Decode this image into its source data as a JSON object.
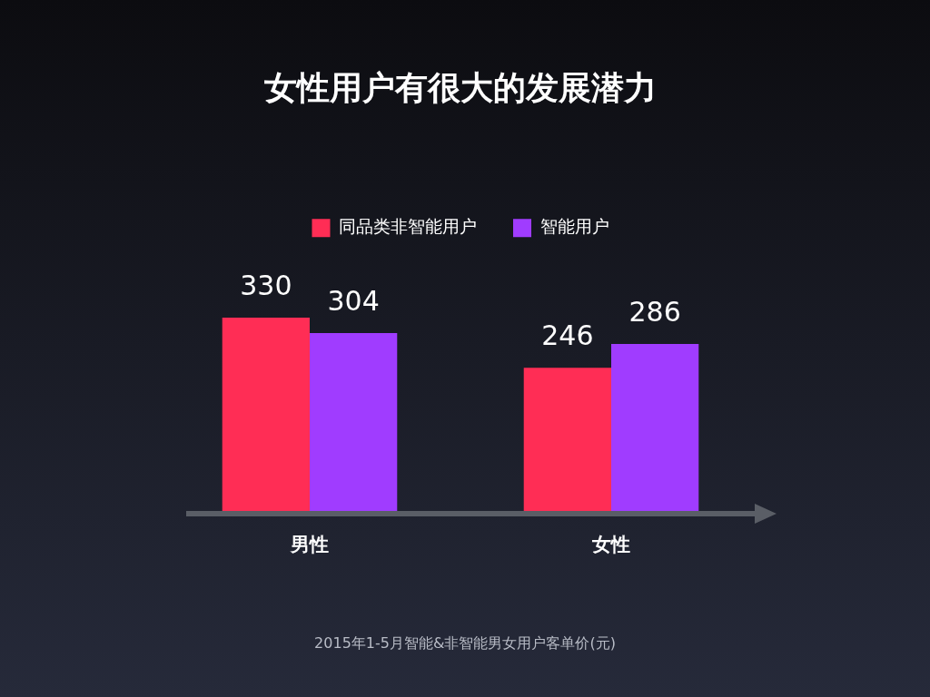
{
  "chart_data": {
    "type": "bar",
    "title": "女性用户有很大的发展潜力",
    "categories": [
      "男性",
      "女性"
    ],
    "series": [
      {
        "name": "同品类非智能用户",
        "color": "#ff2d55",
        "values": [
          330,
          246
        ]
      },
      {
        "name": "智能用户",
        "color": "#a03cff",
        "values": [
          304,
          286
        ]
      }
    ],
    "data_labels": true,
    "legend": "top",
    "annotations": [
      "2015年1-5月智能&非智能男女用户客单价(元)"
    ]
  }
}
